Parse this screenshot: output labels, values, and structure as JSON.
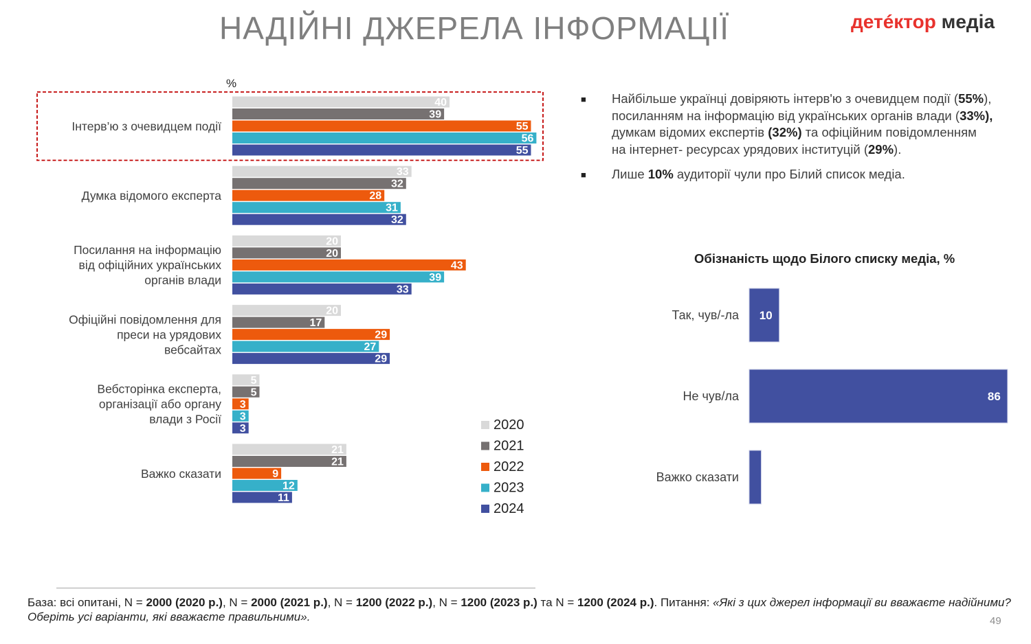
{
  "header": {
    "title": "НАДІЙНІ ДЖЕРЕЛА ІНФОРМАЦІЇ",
    "logo_part1": "детéктор",
    "logo_part2": "медіа"
  },
  "colors": {
    "2020": "#d9d9d9",
    "2021": "#767171",
    "2022": "#ed5a0d",
    "2023": "#36b0c9",
    "2024": "#4150a0",
    "highlight_box": "#c00000"
  },
  "bullets": [
    {
      "parts": [
        {
          "t": "Найбільше українці довіряють інтерв'ю з очевидцем події (",
          "b": false
        },
        {
          "t": "55%",
          "b": true
        },
        {
          "t": "), посиланням на інформацію від українських органів влади (",
          "b": false
        },
        {
          "t": "33%),",
          "b": true
        },
        {
          "t": " думкам відомих експертів ",
          "b": false
        },
        {
          "t": "(32%)",
          "b": true
        },
        {
          "t": " та офіційним повідомленням на інтернет- ресурсах урядових інституцій (",
          "b": false
        },
        {
          "t": "29%",
          "b": true
        },
        {
          "t": ").",
          "b": false
        }
      ]
    },
    {
      "parts": [
        {
          "t": "Лише ",
          "b": false
        },
        {
          "t": "10%",
          "b": true
        },
        {
          "t": " аудиторії чули про Білий список медіа.",
          "b": false
        }
      ]
    }
  ],
  "bullet_marker": "■",
  "chart_data": [
    {
      "type": "bar",
      "orientation": "horizontal",
      "unit_label": "%",
      "categories": [
        [
          "Інтерв’ю з очевидцем події"
        ],
        [
          "Думка відомого експерта"
        ],
        [
          "Посилання на інформацію",
          "від офіційних українських",
          "органів влади"
        ],
        [
          "Офіційні повідомлення для",
          "преси на урядових",
          "вебсайтах"
        ],
        [
          "Вебсторінка експерта,",
          "організації або органу",
          "влади з Росії"
        ],
        [
          "Важко сказати"
        ]
      ],
      "series": [
        {
          "name": "2020",
          "values": [
            40,
            33,
            20,
            20,
            5,
            21
          ]
        },
        {
          "name": "2021",
          "values": [
            39,
            32,
            20,
            17,
            5,
            21
          ]
        },
        {
          "name": "2022",
          "values": [
            55,
            28,
            43,
            29,
            3,
            9
          ]
        },
        {
          "name": "2023",
          "values": [
            56,
            31,
            39,
            27,
            3,
            12
          ]
        },
        {
          "name": "2024",
          "values": [
            55,
            32,
            33,
            29,
            3,
            11
          ]
        }
      ],
      "highlighted_category": 0,
      "legend": "bottom-right",
      "grid": false
    },
    {
      "type": "bar",
      "orientation": "horizontal",
      "title": "Обізнаність щодо Білого списку медіа, %",
      "categories": [
        "Так, чув/-ла",
        "Не чув/ла",
        "Важко сказати"
      ],
      "values": [
        10,
        86,
        4
      ],
      "color": "#4150a0",
      "grid": false
    }
  ],
  "footer": {
    "base_label": "База: всі опитані, N = ",
    "n2020": "2000 (2020 р.)",
    "n2021": "2000 (2021 р.)",
    "n2022": "1200 (2022 р.)",
    "n2023": "1200 (2023 р.)",
    "n2024": "1200 (2024 р.)",
    "sep": ", N = ",
    "and": " та N = ",
    "question_label": ". Питання: ",
    "question": "«Які з цих джерел інформації ви вважаєте надійними? Оберіть усі варіанти, які вважаєте правильними»."
  },
  "page_number": "49"
}
